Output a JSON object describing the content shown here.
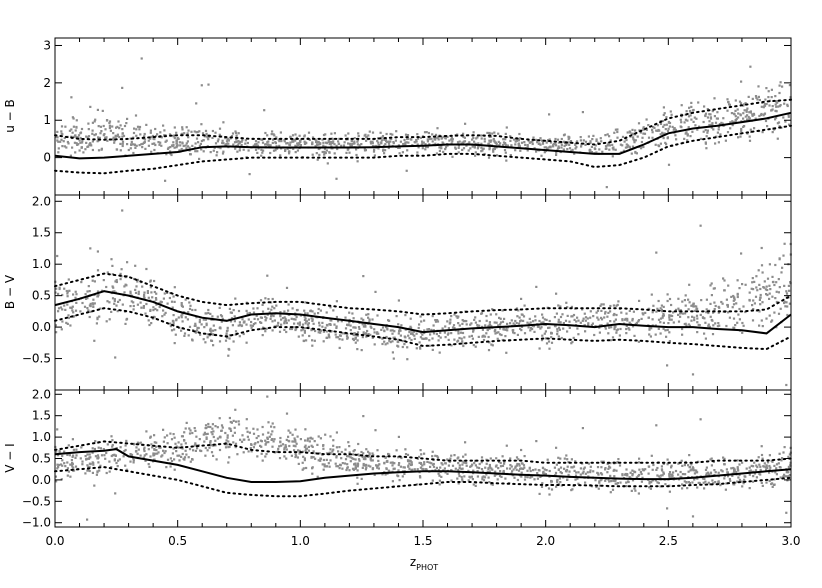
{
  "figure": {
    "background": "#ffffff",
    "point_color": "#8c8c8c",
    "line_color": "#000000"
  },
  "x_axis": {
    "label_main": "z",
    "label_sub": "PHOT",
    "range": [
      0.0,
      3.0
    ],
    "ticks": [
      0.0,
      0.5,
      1.0,
      1.5,
      2.0,
      2.5,
      3.0
    ],
    "tick_labels": [
      "0.0",
      "0.5",
      "1.0",
      "1.5",
      "2.0",
      "2.5",
      "3.0"
    ]
  },
  "chart_data": [
    {
      "type": "scatter",
      "title": "",
      "xlabel": "zPHOT",
      "ylabel": "u − B",
      "xlim": [
        0.0,
        3.0
      ],
      "ylim": [
        -1.0,
        3.2
      ],
      "yticks": [
        0,
        1,
        2,
        3
      ],
      "ytick_labels": [
        "0",
        "1",
        "2",
        "3"
      ],
      "scatter_cloud": {
        "x": [
          0.0,
          0.1,
          0.2,
          0.3,
          0.4,
          0.5,
          0.6,
          0.7,
          0.8,
          0.9,
          1.0,
          1.1,
          1.2,
          1.3,
          1.4,
          1.5,
          1.6,
          1.7,
          1.8,
          1.9,
          2.0,
          2.1,
          2.2,
          2.3,
          2.4,
          2.5,
          2.6,
          2.7,
          2.8,
          2.9,
          3.0
        ],
        "center": [
          0.6,
          0.55,
          0.6,
          0.55,
          0.5,
          0.45,
          0.45,
          0.45,
          0.35,
          0.35,
          0.35,
          0.35,
          0.35,
          0.35,
          0.4,
          0.4,
          0.45,
          0.4,
          0.35,
          0.35,
          0.3,
          0.35,
          0.35,
          0.4,
          0.6,
          0.8,
          0.95,
          1.05,
          1.15,
          1.3,
          1.45
        ],
        "spread": [
          0.3,
          0.3,
          0.35,
          0.35,
          0.3,
          0.25,
          0.3,
          0.25,
          0.2,
          0.2,
          0.2,
          0.2,
          0.2,
          0.2,
          0.2,
          0.2,
          0.2,
          0.2,
          0.2,
          0.2,
          0.2,
          0.2,
          0.2,
          0.25,
          0.3,
          0.35,
          0.4,
          0.4,
          0.4,
          0.45,
          0.5
        ]
      },
      "series": [
        {
          "style": "solid",
          "x": [
            0.0,
            0.1,
            0.2,
            0.3,
            0.4,
            0.5,
            0.6,
            0.7,
            0.8,
            0.9,
            1.0,
            1.1,
            1.2,
            1.3,
            1.4,
            1.5,
            1.6,
            1.7,
            1.8,
            1.9,
            2.0,
            2.1,
            2.2,
            2.3,
            2.4,
            2.5,
            2.6,
            2.7,
            2.8,
            2.9,
            3.0
          ],
          "y": [
            0.05,
            -0.02,
            0.0,
            0.05,
            0.1,
            0.15,
            0.28,
            0.3,
            0.28,
            0.27,
            0.27,
            0.27,
            0.27,
            0.28,
            0.3,
            0.32,
            0.35,
            0.35,
            0.3,
            0.25,
            0.2,
            0.15,
            0.1,
            0.1,
            0.35,
            0.65,
            0.78,
            0.85,
            0.95,
            1.05,
            1.2
          ]
        },
        {
          "style": "dotted",
          "x": [
            0.0,
            0.1,
            0.2,
            0.3,
            0.4,
            0.5,
            0.6,
            0.7,
            0.8,
            0.9,
            1.0,
            1.1,
            1.2,
            1.3,
            1.4,
            1.5,
            1.6,
            1.7,
            1.8,
            1.9,
            2.0,
            2.1,
            2.2,
            2.3,
            2.4,
            2.5,
            2.6,
            2.7,
            2.8,
            2.9,
            3.0
          ],
          "y": [
            0.6,
            0.5,
            0.48,
            0.5,
            0.55,
            0.6,
            0.6,
            0.55,
            0.5,
            0.5,
            0.5,
            0.5,
            0.5,
            0.5,
            0.55,
            0.55,
            0.58,
            0.6,
            0.58,
            0.5,
            0.45,
            0.4,
            0.35,
            0.45,
            0.75,
            1.05,
            1.2,
            1.3,
            1.4,
            1.5,
            1.55
          ]
        },
        {
          "style": "dotted",
          "x": [
            0.0,
            0.1,
            0.2,
            0.3,
            0.4,
            0.5,
            0.6,
            0.7,
            0.8,
            0.9,
            1.0,
            1.1,
            1.2,
            1.3,
            1.4,
            1.5,
            1.6,
            1.7,
            1.8,
            1.9,
            2.0,
            2.1,
            2.2,
            2.3,
            2.4,
            2.5,
            2.6,
            2.7,
            2.8,
            2.9,
            3.0
          ],
          "y": [
            -0.35,
            -0.4,
            -0.42,
            -0.35,
            -0.3,
            -0.2,
            -0.1,
            -0.05,
            0.0,
            0.0,
            0.0,
            0.0,
            0.0,
            0.0,
            0.05,
            0.05,
            0.1,
            0.1,
            0.05,
            0.0,
            -0.05,
            -0.1,
            -0.25,
            -0.2,
            0.0,
            0.3,
            0.45,
            0.55,
            0.65,
            0.75,
            0.85
          ]
        }
      ]
    },
    {
      "type": "scatter",
      "title": "",
      "xlabel": "zPHOT",
      "ylabel": "B − V",
      "xlim": [
        0.0,
        3.0
      ],
      "ylim": [
        -1.0,
        2.1
      ],
      "yticks": [
        -0.5,
        0.0,
        0.5,
        1.0,
        1.5,
        2.0
      ],
      "ytick_labels": [
        "−0.5",
        "0.0",
        "0.5",
        "1.0",
        "1.5",
        "2.0"
      ],
      "scatter_cloud": {
        "x": [
          0.0,
          0.1,
          0.2,
          0.3,
          0.4,
          0.5,
          0.6,
          0.7,
          0.8,
          0.9,
          1.0,
          1.1,
          1.2,
          1.3,
          1.4,
          1.5,
          1.6,
          1.7,
          1.8,
          1.9,
          2.0,
          2.1,
          2.2,
          2.3,
          2.4,
          2.5,
          2.6,
          2.7,
          2.8,
          2.9,
          3.0
        ],
        "center": [
          0.35,
          0.4,
          0.55,
          0.55,
          0.4,
          0.2,
          0.05,
          -0.05,
          0.15,
          0.15,
          0.1,
          0.05,
          0.0,
          -0.05,
          -0.1,
          -0.15,
          -0.05,
          0.0,
          0.0,
          0.05,
          0.05,
          0.05,
          0.1,
          0.1,
          0.1,
          0.15,
          0.2,
          0.3,
          0.4,
          0.55,
          0.65
        ],
        "spread": [
          0.3,
          0.3,
          0.35,
          0.35,
          0.3,
          0.3,
          0.25,
          0.25,
          0.2,
          0.2,
          0.2,
          0.2,
          0.2,
          0.2,
          0.2,
          0.2,
          0.2,
          0.2,
          0.2,
          0.2,
          0.2,
          0.2,
          0.2,
          0.2,
          0.2,
          0.25,
          0.25,
          0.3,
          0.35,
          0.4,
          0.45
        ]
      },
      "series": [
        {
          "style": "solid",
          "x": [
            0.0,
            0.1,
            0.2,
            0.3,
            0.4,
            0.5,
            0.6,
            0.7,
            0.8,
            0.9,
            1.0,
            1.1,
            1.2,
            1.3,
            1.4,
            1.5,
            1.6,
            1.7,
            1.8,
            1.9,
            2.0,
            2.1,
            2.2,
            2.3,
            2.4,
            2.5,
            2.6,
            2.7,
            2.8,
            2.9,
            3.0
          ],
          "y": [
            0.35,
            0.45,
            0.57,
            0.5,
            0.4,
            0.25,
            0.15,
            0.1,
            0.2,
            0.22,
            0.2,
            0.15,
            0.1,
            0.05,
            0.0,
            -0.08,
            -0.05,
            -0.02,
            0.0,
            0.02,
            0.05,
            0.03,
            0.0,
            0.05,
            0.02,
            0.0,
            0.0,
            -0.03,
            -0.05,
            -0.1,
            0.2
          ]
        },
        {
          "style": "dotted",
          "x": [
            0.0,
            0.1,
            0.2,
            0.3,
            0.4,
            0.5,
            0.6,
            0.7,
            0.8,
            0.9,
            1.0,
            1.1,
            1.2,
            1.3,
            1.4,
            1.5,
            1.6,
            1.7,
            1.8,
            1.9,
            2.0,
            2.1,
            2.2,
            2.3,
            2.4,
            2.5,
            2.6,
            2.7,
            2.8,
            2.9,
            3.0
          ],
          "y": [
            0.65,
            0.75,
            0.85,
            0.8,
            0.65,
            0.5,
            0.4,
            0.35,
            0.38,
            0.4,
            0.4,
            0.35,
            0.3,
            0.28,
            0.25,
            0.2,
            0.22,
            0.25,
            0.27,
            0.28,
            0.3,
            0.3,
            0.3,
            0.3,
            0.28,
            0.25,
            0.25,
            0.25,
            0.25,
            0.28,
            0.5
          ]
        },
        {
          "style": "dotted",
          "x": [
            0.0,
            0.1,
            0.2,
            0.3,
            0.4,
            0.5,
            0.6,
            0.7,
            0.8,
            0.9,
            1.0,
            1.1,
            1.2,
            1.3,
            1.4,
            1.5,
            1.6,
            1.7,
            1.8,
            1.9,
            2.0,
            2.1,
            2.2,
            2.3,
            2.4,
            2.5,
            2.6,
            2.7,
            2.8,
            2.9,
            3.0
          ],
          "y": [
            0.1,
            0.2,
            0.3,
            0.25,
            0.15,
            0.0,
            -0.1,
            -0.15,
            -0.05,
            0.0,
            0.0,
            -0.05,
            -0.1,
            -0.15,
            -0.2,
            -0.3,
            -0.28,
            -0.25,
            -0.22,
            -0.2,
            -0.18,
            -0.2,
            -0.22,
            -0.2,
            -0.22,
            -0.25,
            -0.27,
            -0.3,
            -0.33,
            -0.35,
            -0.15
          ]
        }
      ]
    },
    {
      "type": "scatter",
      "title": "",
      "xlabel": "zPHOT",
      "ylabel": "V − I",
      "xlim": [
        0.0,
        3.0
      ],
      "ylim": [
        -1.1,
        2.1
      ],
      "yticks": [
        -1.0,
        -0.5,
        0.0,
        0.5,
        1.0,
        1.5,
        2.0
      ],
      "ytick_labels": [
        "−1.0",
        "−0.5",
        "0.0",
        "0.5",
        "1.0",
        "1.5",
        "2.0"
      ],
      "scatter_cloud": {
        "x": [
          0.0,
          0.1,
          0.2,
          0.3,
          0.4,
          0.5,
          0.6,
          0.7,
          0.8,
          0.9,
          1.0,
          1.1,
          1.2,
          1.3,
          1.4,
          1.5,
          1.6,
          1.7,
          1.8,
          1.9,
          2.0,
          2.1,
          2.2,
          2.3,
          2.4,
          2.5,
          2.6,
          2.7,
          2.8,
          2.9,
          3.0
        ],
        "center": [
          0.4,
          0.45,
          0.55,
          0.6,
          0.7,
          0.8,
          0.95,
          1.0,
          0.95,
          0.85,
          0.75,
          0.65,
          0.5,
          0.4,
          0.35,
          0.3,
          0.3,
          0.25,
          0.25,
          0.2,
          0.15,
          0.15,
          0.1,
          0.1,
          0.1,
          0.1,
          0.1,
          0.15,
          0.2,
          0.25,
          0.3
        ],
        "spread": [
          0.3,
          0.3,
          0.3,
          0.3,
          0.3,
          0.35,
          0.35,
          0.35,
          0.35,
          0.3,
          0.3,
          0.3,
          0.25,
          0.25,
          0.25,
          0.25,
          0.25,
          0.25,
          0.25,
          0.25,
          0.25,
          0.25,
          0.25,
          0.25,
          0.25,
          0.25,
          0.25,
          0.25,
          0.25,
          0.3,
          0.3
        ]
      },
      "series": [
        {
          "style": "solid",
          "x": [
            0.0,
            0.1,
            0.2,
            0.25,
            0.3,
            0.4,
            0.5,
            0.6,
            0.7,
            0.8,
            0.9,
            1.0,
            1.1,
            1.2,
            1.3,
            1.4,
            1.5,
            1.6,
            1.7,
            1.8,
            1.9,
            2.0,
            2.1,
            2.2,
            2.3,
            2.4,
            2.5,
            2.6,
            2.7,
            2.8,
            2.9,
            3.0
          ],
          "y": [
            0.6,
            0.65,
            0.68,
            0.72,
            0.55,
            0.45,
            0.35,
            0.2,
            0.05,
            -0.05,
            -0.05,
            -0.03,
            0.05,
            0.1,
            0.15,
            0.18,
            0.2,
            0.2,
            0.18,
            0.15,
            0.12,
            0.1,
            0.07,
            0.05,
            0.03,
            0.02,
            0.02,
            0.05,
            0.1,
            0.15,
            0.2,
            0.25
          ]
        },
        {
          "style": "dotted",
          "x": [
            0.0,
            0.1,
            0.2,
            0.3,
            0.4,
            0.5,
            0.6,
            0.7,
            0.8,
            0.9,
            1.0,
            1.1,
            1.2,
            1.3,
            1.4,
            1.5,
            1.6,
            1.7,
            1.8,
            1.9,
            2.0,
            2.1,
            2.2,
            2.3,
            2.4,
            2.5,
            2.6,
            2.7,
            2.8,
            2.9,
            3.0
          ],
          "y": [
            0.7,
            0.8,
            0.9,
            0.85,
            0.8,
            0.75,
            0.8,
            0.85,
            0.7,
            0.65,
            0.65,
            0.6,
            0.6,
            0.55,
            0.55,
            0.5,
            0.45,
            0.45,
            0.45,
            0.45,
            0.4,
            0.4,
            0.4,
            0.4,
            0.4,
            0.4,
            0.4,
            0.45,
            0.45,
            0.45,
            0.5
          ]
        },
        {
          "style": "dotted",
          "x": [
            0.0,
            0.1,
            0.2,
            0.3,
            0.4,
            0.5,
            0.6,
            0.7,
            0.8,
            0.9,
            1.0,
            1.1,
            1.2,
            1.3,
            1.4,
            1.5,
            1.6,
            1.7,
            1.8,
            1.9,
            2.0,
            2.1,
            2.2,
            2.3,
            2.4,
            2.5,
            2.6,
            2.7,
            2.8,
            2.9,
            3.0
          ],
          "y": [
            0.2,
            0.25,
            0.3,
            0.2,
            0.1,
            0.0,
            -0.15,
            -0.3,
            -0.35,
            -0.38,
            -0.38,
            -0.32,
            -0.25,
            -0.2,
            -0.15,
            -0.1,
            -0.05,
            -0.05,
            -0.08,
            -0.1,
            -0.12,
            -0.12,
            -0.13,
            -0.15,
            -0.15,
            -0.15,
            -0.12,
            -0.1,
            -0.05,
            0.0,
            0.05
          ]
        }
      ]
    }
  ]
}
